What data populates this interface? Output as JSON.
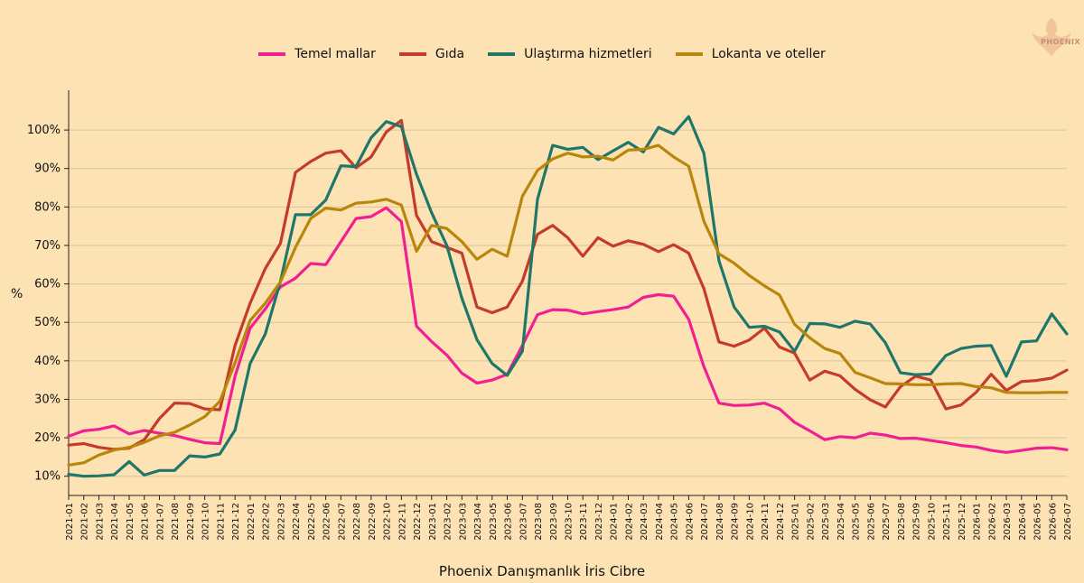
{
  "legend": {
    "items": [
      {
        "label": "Temel mallar",
        "color": "#f01f93"
      },
      {
        "label": "Gıda",
        "color": "#c43a2b"
      },
      {
        "label": "Ulaştırma hizmetleri",
        "color": "#1f7769"
      },
      {
        "label": "Lokanta ve oteller",
        "color": "#b8860b"
      }
    ]
  },
  "logo": {
    "text": "PHOENIX"
  },
  "chart_data": {
    "type": "line",
    "xlabel": "Phoenix Danışmanlık İris Cibre",
    "ylabel": "%",
    "ylim": [
      5,
      108
    ],
    "yticks": [
      10,
      20,
      30,
      40,
      50,
      60,
      70,
      80,
      90,
      100
    ],
    "ytick_labels": [
      "10%",
      "20%",
      "30%",
      "40%",
      "50%",
      "60%",
      "70%",
      "80%",
      "90%",
      "100%"
    ],
    "grid": "horizontal",
    "legend_position": "top-center",
    "x": [
      "2021-01",
      "2021-02",
      "2021-03",
      "2021-04",
      "2021-05",
      "2021-06",
      "2021-07",
      "2021-08",
      "2021-09",
      "2021-10",
      "2021-11",
      "2021-12",
      "2022-01",
      "2022-02",
      "2022-03",
      "2022-04",
      "2022-05",
      "2022-06",
      "2022-07",
      "2022-08",
      "2022-09",
      "2022-10",
      "2022-11",
      "2022-12",
      "2023-01",
      "2023-02",
      "2023-03",
      "2023-04",
      "2023-05",
      "2023-06",
      "2023-07",
      "2023-08",
      "2023-09",
      "2023-10",
      "2023-11",
      "2023-12",
      "2024-01",
      "2024-02",
      "2024-03",
      "2024-04",
      "2024-05",
      "2024-06",
      "2024-07",
      "2024-08",
      "2024-09",
      "2024-10",
      "2024-11",
      "2024-12",
      "2025-01",
      "2025-02",
      "2025-03",
      "2025-04",
      "2025-05",
      "2025-06",
      "2025-07",
      "2025-08",
      "2025-09",
      "2025-10",
      "2025-11",
      "2025-12",
      "2026-01",
      "2026-02",
      "2026-03",
      "2026-04",
      "2026-05",
      "2026-06",
      "2026-07"
    ],
    "series": [
      {
        "name": "Temel mallar",
        "color": "#f01f93",
        "values": [
          20.4,
          21.8,
          22.2,
          23.1,
          21.0,
          21.9,
          21.2,
          20.6,
          19.6,
          18.7,
          18.5,
          36.0,
          48.5,
          53.5,
          59.2,
          61.5,
          65.3,
          65.0,
          71.0,
          77.0,
          77.5,
          79.8,
          76.2,
          49.0,
          45.0,
          41.5,
          36.8,
          34.2,
          35.0,
          36.5,
          44.0,
          52.0,
          53.3,
          53.2,
          52.2,
          52.8,
          53.3,
          54.0,
          56.5,
          57.2,
          56.8,
          50.8,
          38.5,
          29.0,
          28.4,
          28.5,
          29.0,
          27.5,
          24.0,
          21.8,
          19.5,
          20.3,
          20.0,
          21.2,
          20.7,
          19.8,
          19.9,
          19.3,
          18.7,
          18.0,
          17.6,
          16.7,
          16.2,
          16.7,
          17.3,
          17.4,
          16.9
        ]
      },
      {
        "name": "Gıda",
        "color": "#c43a2b",
        "values": [
          18.1,
          18.5,
          17.5,
          17.0,
          17.3,
          19.5,
          25.0,
          29.0,
          28.9,
          27.5,
          27.3,
          44.0,
          55.0,
          64.0,
          70.5,
          89.0,
          91.8,
          94.0,
          94.6,
          90.2,
          93.0,
          99.5,
          102.5,
          77.8,
          71.0,
          69.5,
          68.0,
          54.0,
          52.5,
          54.0,
          60.7,
          72.9,
          75.2,
          72.0,
          67.2,
          72.0,
          69.8,
          71.2,
          70.3,
          68.4,
          70.2,
          68.0,
          58.8,
          44.9,
          43.8,
          45.4,
          48.5,
          43.6,
          42.0,
          35.0,
          37.3,
          36.1,
          32.6,
          29.9,
          28.0,
          33.3,
          36.0,
          35.0,
          27.5,
          28.5,
          31.8,
          36.5,
          32.3,
          34.6,
          34.9,
          35.5,
          37.6
        ]
      },
      {
        "name": "Ulaştırma hizmetleri",
        "color": "#1f7769",
        "values": [
          10.5,
          10.0,
          10.1,
          10.4,
          13.8,
          10.3,
          11.5,
          11.5,
          15.3,
          15.0,
          15.8,
          22.0,
          39.3,
          47.0,
          60.6,
          78.0,
          78.0,
          81.8,
          90.7,
          90.5,
          98.0,
          102.2,
          100.9,
          88.5,
          78.5,
          70.0,
          56.3,
          45.5,
          39.3,
          36.2,
          42.5,
          82.0,
          96.0,
          95.0,
          95.5,
          92.3,
          94.6,
          96.8,
          94.3,
          100.7,
          99.0,
          103.5,
          94.0,
          66.0,
          54.0,
          48.7,
          49.0,
          47.5,
          42.5,
          49.7,
          49.6,
          48.7,
          50.3,
          49.6,
          44.7,
          36.9,
          36.4,
          36.6,
          41.4,
          43.2,
          43.8,
          44.0,
          36.0,
          44.9,
          45.2,
          52.2,
          47.0
        ]
      },
      {
        "name": "Lokanta ve oteller",
        "color": "#b8860b",
        "values": [
          12.9,
          13.5,
          15.5,
          16.8,
          17.5,
          18.8,
          20.5,
          21.4,
          23.3,
          25.5,
          29.5,
          39.5,
          50.5,
          55.0,
          60.5,
          69.5,
          77.0,
          79.7,
          79.2,
          81.0,
          81.3,
          82.0,
          80.5,
          68.5,
          75.2,
          74.4,
          71.0,
          66.4,
          69.0,
          67.2,
          82.8,
          89.5,
          92.5,
          94.0,
          93.0,
          93.2,
          92.2,
          94.8,
          95.0,
          96.0,
          93.0,
          90.6,
          76.3,
          67.8,
          65.4,
          62.2,
          59.5,
          57.1,
          49.5,
          46.0,
          43.2,
          41.9,
          37.0,
          35.6,
          34.1,
          34.0,
          33.8,
          33.8,
          34.0,
          34.1,
          33.3,
          33.0,
          31.8,
          31.7,
          31.7,
          31.8,
          31.8
        ]
      }
    ]
  }
}
